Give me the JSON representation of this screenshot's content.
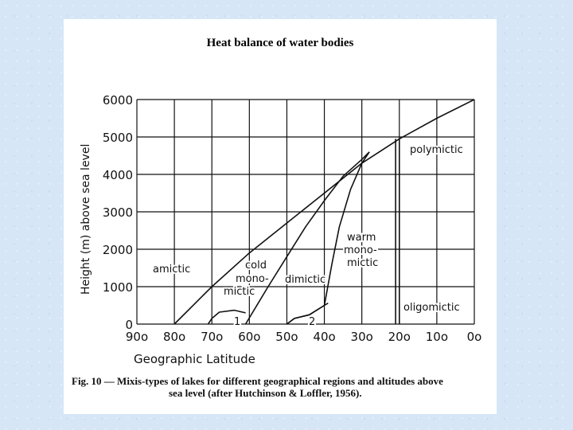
{
  "chart_data": {
    "type": "line",
    "title": "Heat balance of water bodies",
    "xlabel": "Geographic Latitude",
    "ylabel": "Height (m) above sea level",
    "x_tick_labels": [
      "90o",
      "80o",
      "70o",
      "60o",
      "50o",
      "40o",
      "30o",
      "20o",
      "10o",
      "0o"
    ],
    "x_tick_values": [
      90,
      80,
      70,
      60,
      50,
      40,
      30,
      20,
      10,
      0
    ],
    "y_tick_labels": [
      "0",
      "1000",
      "2000",
      "3000",
      "4000",
      "5000",
      "6000"
    ],
    "y_tick_values": [
      0,
      1000,
      2000,
      3000,
      4000,
      5000,
      6000
    ],
    "xlim": [
      90,
      0
    ],
    "ylim": [
      0,
      6000
    ],
    "grid": true,
    "series": [
      {
        "name": "upper boundary",
        "points": [
          [
            80,
            0
          ],
          [
            70,
            1000
          ],
          [
            60,
            1900
          ],
          [
            50,
            2700
          ],
          [
            40,
            3500
          ],
          [
            30,
            4300
          ],
          [
            20,
            4950
          ],
          [
            10,
            5500
          ],
          [
            0,
            6000
          ]
        ]
      },
      {
        "name": "cold monomictic / dimictic boundary",
        "points": [
          [
            61,
            0
          ],
          [
            55,
            1000
          ],
          [
            50,
            1800
          ],
          [
            45,
            2600
          ],
          [
            40,
            3300
          ],
          [
            35,
            3950
          ],
          [
            30,
            4400
          ],
          [
            28,
            4600
          ]
        ]
      },
      {
        "name": "curve 1",
        "points": [
          [
            71,
            0
          ],
          [
            70,
            150
          ],
          [
            68,
            320
          ],
          [
            64,
            370
          ],
          [
            61,
            300
          ]
        ]
      },
      {
        "name": "dimictic / warm monomictic boundary",
        "points": [
          [
            50,
            0
          ],
          [
            48,
            150
          ],
          [
            44,
            250
          ],
          [
            40,
            500
          ],
          [
            38,
            1600
          ],
          [
            36,
            2600
          ],
          [
            33,
            3600
          ],
          [
            30,
            4300
          ],
          [
            28,
            4600
          ]
        ]
      },
      {
        "name": "curve 2",
        "points": [
          [
            50,
            0
          ],
          [
            48,
            150
          ],
          [
            44,
            250
          ],
          [
            40,
            500
          ],
          [
            39,
            560
          ]
        ]
      },
      {
        "name": "tropical boundary",
        "points": [
          [
            21,
            0
          ],
          [
            21,
            4950
          ]
        ]
      },
      {
        "name": "tropical boundary second line",
        "points": [
          [
            20,
            0
          ],
          [
            20,
            4950
          ]
        ]
      }
    ],
    "annotations": [
      {
        "text": "polymictic"
      },
      {
        "text": "amictic"
      },
      {
        "text": "cold"
      },
      {
        "text": "mono-"
      },
      {
        "text": "mictic"
      },
      {
        "text": "dimictic"
      },
      {
        "text": "warm"
      },
      {
        "text": "mono-"
      },
      {
        "text": "mictic"
      },
      {
        "text": "oligomictic"
      },
      {
        "text": "1"
      },
      {
        "text": "2"
      }
    ]
  },
  "caption": {
    "line1": "Fig. 10 — Mixis-types of lakes for different geographical regions and altitudes above",
    "line2": "sea level (after Hutchinson & Loffler, 1956)."
  }
}
